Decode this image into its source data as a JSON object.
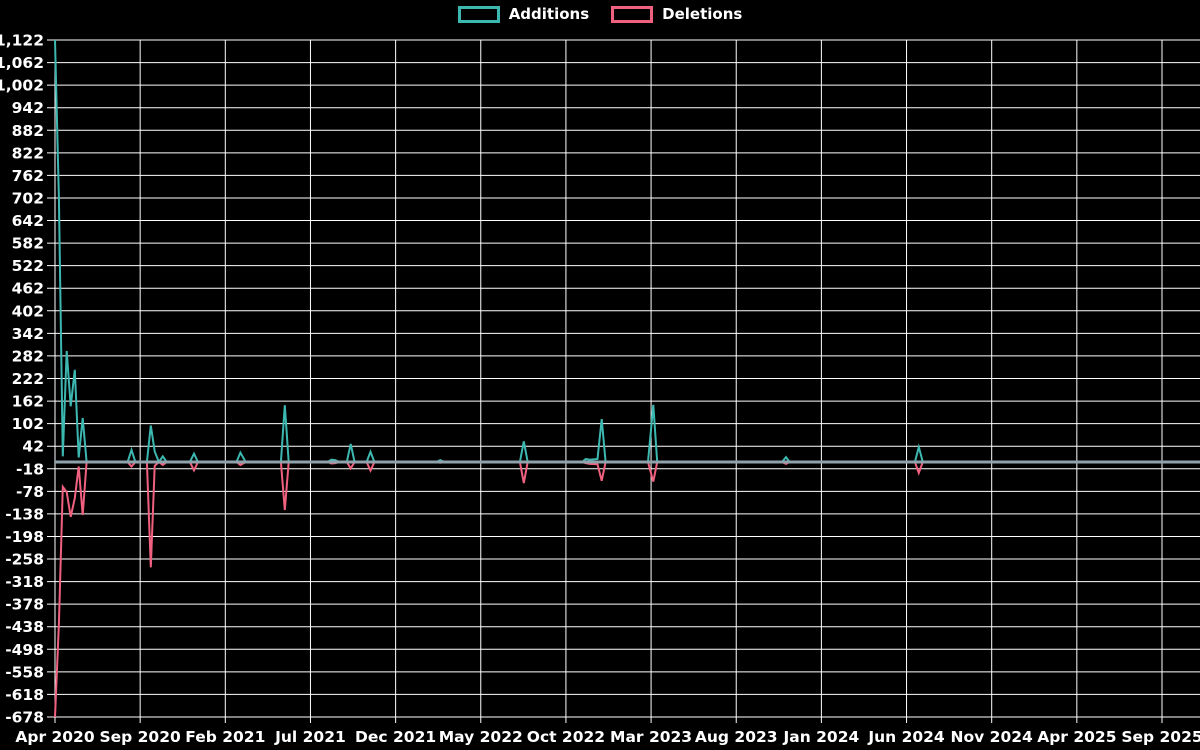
{
  "legend": {
    "additions_label": "Additions",
    "deletions_label": "Deletions"
  },
  "colors": {
    "additions": "#3db8b1",
    "deletions": "#f0617f",
    "grid": "#ffffff",
    "zero_line": "#8fa3ac",
    "text": "#ffffff",
    "background": "#000000"
  },
  "chart_data": {
    "type": "line",
    "title": "",
    "xlabel": "",
    "ylabel": "",
    "grid": true,
    "legend_position": "top",
    "legend_entries": [
      "Additions",
      "Deletions"
    ],
    "ylim": [
      -678,
      1122
    ],
    "y_step": 60,
    "y_tick_labels": [
      "1,122",
      "1,062",
      "1,002",
      "942",
      "882",
      "822",
      "762",
      "702",
      "642",
      "582",
      "522",
      "462",
      "402",
      "342",
      "282",
      "222",
      "162",
      "102",
      "42",
      "-18",
      "-78",
      "-138",
      "-198",
      "-258",
      "-318",
      "-378",
      "-438",
      "-498",
      "-558",
      "-618",
      "-678"
    ],
    "x_tick_labels": [
      "Apr 2020",
      "Sep 2020",
      "Feb 2021",
      "Jul 2021",
      "Dec 2021",
      "May 2022",
      "Oct 2022",
      "Mar 2023",
      "Aug 2023",
      "Jan 2024",
      "Jun 2024",
      "Nov 2024",
      "Apr 2025",
      "Sep 2025"
    ],
    "series_names": [
      "Additions",
      "Deletions"
    ],
    "rows_format": [
      "week_date",
      "additions",
      "deletions"
    ],
    "rows": [
      [
        "2020-04-01",
        1122,
        -678
      ],
      [
        "2020-04-08",
        702,
        -430
      ],
      [
        "2020-04-15",
        15,
        -66
      ],
      [
        "2020-04-22",
        295,
        -80
      ],
      [
        "2020-04-29",
        148,
        -146
      ],
      [
        "2020-05-06",
        245,
        -96
      ],
      [
        "2020-05-13",
        12,
        -12
      ],
      [
        "2020-05-20",
        117,
        -141
      ],
      [
        "2020-05-27",
        0,
        0
      ],
      [
        "2020-08-09",
        0,
        0
      ],
      [
        "2020-08-16",
        32,
        -12
      ],
      [
        "2020-08-23",
        0,
        0
      ],
      [
        "2020-09-13",
        0,
        0
      ],
      [
        "2020-09-20",
        97,
        -280
      ],
      [
        "2020-09-27",
        28,
        -10
      ],
      [
        "2020-10-04",
        0,
        0
      ],
      [
        "2020-10-11",
        15,
        -8
      ],
      [
        "2020-10-18",
        0,
        0
      ],
      [
        "2020-11-29",
        0,
        0
      ],
      [
        "2020-12-06",
        22,
        -22
      ],
      [
        "2020-12-13",
        0,
        0
      ],
      [
        "2021-02-21",
        0,
        0
      ],
      [
        "2021-02-28",
        25,
        -8
      ],
      [
        "2021-03-07",
        0,
        0
      ],
      [
        "2021-05-09",
        0,
        0
      ],
      [
        "2021-05-16",
        151,
        -128
      ],
      [
        "2021-05-23",
        0,
        0
      ],
      [
        "2021-08-01",
        0,
        0
      ],
      [
        "2021-08-08",
        6,
        -4
      ],
      [
        "2021-08-15",
        5,
        -3
      ],
      [
        "2021-08-22",
        0,
        0
      ],
      [
        "2021-09-05",
        0,
        0
      ],
      [
        "2021-09-12",
        48,
        -17
      ],
      [
        "2021-09-19",
        0,
        0
      ],
      [
        "2021-10-10",
        0,
        0
      ],
      [
        "2021-10-17",
        27,
        -23
      ],
      [
        "2021-10-24",
        0,
        0
      ],
      [
        "2022-02-13",
        0,
        0
      ],
      [
        "2022-02-20",
        5,
        -2
      ],
      [
        "2022-02-27",
        0,
        0
      ],
      [
        "2022-07-10",
        0,
        0
      ],
      [
        "2022-07-17",
        55,
        -56
      ],
      [
        "2022-07-24",
        0,
        0
      ],
      [
        "2022-10-30",
        0,
        0
      ],
      [
        "2022-11-06",
        8,
        -3
      ],
      [
        "2022-11-13",
        6,
        -5
      ],
      [
        "2022-11-27",
        8,
        -6
      ],
      [
        "2022-12-04",
        114,
        -50
      ],
      [
        "2022-12-11",
        0,
        0
      ],
      [
        "2023-02-26",
        0,
        0
      ],
      [
        "2023-03-05",
        152,
        -52
      ],
      [
        "2023-03-12",
        0,
        0
      ],
      [
        "2023-10-22",
        0,
        0
      ],
      [
        "2023-10-29",
        13,
        -5
      ],
      [
        "2023-11-05",
        0,
        0
      ],
      [
        "2024-06-16",
        0,
        0
      ],
      [
        "2024-06-23",
        40,
        -29
      ],
      [
        "2024-06-30",
        0,
        0
      ],
      [
        "2025-11-20",
        0,
        0
      ]
    ]
  }
}
